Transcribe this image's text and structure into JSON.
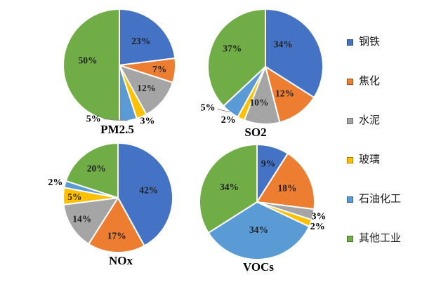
{
  "figure": {
    "background": "#FFFFFF",
    "description": "Four pie charts of pollutant emission shares by industry"
  },
  "palette": {
    "steel": "#4472C4",
    "coking": "#ED7D31",
    "cement": "#A5A5A5",
    "glass": "#FFC000",
    "petrochemical": "#5B9BD5",
    "other_industry": "#70AD47"
  },
  "legend": {
    "position": "right",
    "items": [
      {
        "key": "steel",
        "label": "钢铁",
        "color": "#4472C4"
      },
      {
        "key": "coking",
        "label": "焦化",
        "color": "#ED7D31"
      },
      {
        "key": "cement",
        "label": "水泥",
        "color": "#A5A5A5"
      },
      {
        "key": "glass",
        "label": "玻璃",
        "color": "#FFC000"
      },
      {
        "key": "petrochemical",
        "label": "石油化工",
        "color": "#5B9BD5"
      },
      {
        "key": "other_industry",
        "label": "其他工业",
        "color": "#70AD47"
      }
    ]
  },
  "chart_data": [
    {
      "type": "pie",
      "title": "PM2.5",
      "categories": [
        "钢铁",
        "焦化",
        "水泥",
        "玻璃",
        "石油化工",
        "其他工业"
      ],
      "values": [
        23,
        7,
        12,
        3,
        5,
        50
      ],
      "unit": "%",
      "start_angle_deg": 0,
      "direction": "clockwise",
      "data_labels": [
        {
          "text": "23%",
          "pos": "in",
          "r": 0.58
        },
        {
          "text": "7%",
          "pos": "in",
          "r": 0.72
        },
        {
          "text": "12%",
          "pos": "in",
          "r": 0.63
        },
        {
          "text": "3%",
          "pos": "out",
          "r": 1.1,
          "angle": 153
        },
        {
          "text": "5%",
          "pos": "out",
          "r": 1.05,
          "angle": 206,
          "leader": true
        },
        {
          "text": "50%",
          "pos": "in",
          "r": 0.57,
          "angle": 279
        }
      ]
    },
    {
      "type": "pie",
      "title": "SO2",
      "categories": [
        "钢铁",
        "焦化",
        "水泥",
        "玻璃",
        "石油化工",
        "其他工业"
      ],
      "values": [
        34,
        12,
        10,
        2,
        5,
        37
      ],
      "unit": "%",
      "start_angle_deg": 0,
      "direction": "clockwise",
      "data_labels": [
        {
          "text": "34%",
          "pos": "in",
          "r": 0.5,
          "angle": 38
        },
        {
          "text": "12%",
          "pos": "in",
          "r": 0.57
        },
        {
          "text": "10%",
          "pos": "in",
          "r": 0.63,
          "angle": 190
        },
        {
          "text": "2%",
          "pos": "out",
          "r": 1.12,
          "angle": 215
        },
        {
          "text": "5%",
          "pos": "out",
          "r": 1.22,
          "angle": 235,
          "leader": true
        },
        {
          "text": "37%",
          "pos": "in",
          "r": 0.66,
          "angle": 299
        }
      ]
    },
    {
      "type": "pie",
      "title": "NOx",
      "categories": [
        "钢铁",
        "焦化",
        "水泥",
        "玻璃",
        "石油化工",
        "其他工业"
      ],
      "values": [
        42,
        17,
        14,
        5,
        2,
        20
      ],
      "unit": "%",
      "start_angle_deg": 0,
      "direction": "clockwise",
      "data_labels": [
        {
          "text": "42%",
          "pos": "in",
          "r": 0.58
        },
        {
          "text": "17%",
          "pos": "in",
          "r": 0.69
        },
        {
          "text": "14%",
          "pos": "in",
          "r": 0.76,
          "angle": 240
        },
        {
          "text": "5%",
          "pos": "in",
          "r": 0.79
        },
        {
          "text": "2%",
          "pos": "out",
          "r": 1.18
        },
        {
          "text": "20%",
          "pos": "in",
          "r": 0.67
        }
      ]
    },
    {
      "type": "pie",
      "title": "VOCs",
      "categories": [
        "钢铁",
        "焦化",
        "水泥",
        "玻璃",
        "石油化工",
        "其他工业"
      ],
      "values": [
        9,
        18,
        3,
        2,
        34,
        34
      ],
      "unit": "%",
      "start_angle_deg": 0,
      "direction": "clockwise",
      "data_labels": [
        {
          "text": "9%",
          "pos": "in",
          "r": 0.7
        },
        {
          "text": "18%",
          "pos": "in",
          "r": 0.58
        },
        {
          "text": "3%",
          "pos": "out",
          "r": 1.1
        },
        {
          "text": "2%",
          "pos": "out",
          "r": 1.13
        },
        {
          "text": "34%",
          "pos": "in",
          "r": 0.48
        },
        {
          "text": "34%",
          "pos": "in",
          "r": 0.55
        }
      ]
    }
  ]
}
